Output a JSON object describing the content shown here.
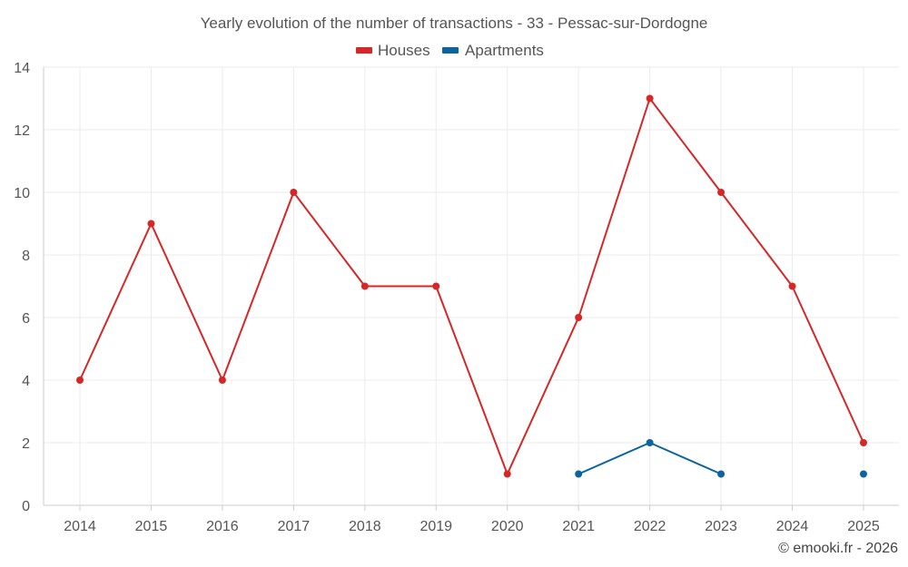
{
  "chart_data": {
    "type": "line",
    "title": "Yearly evolution of the number of transactions - 33 - Pessac-sur-Dordogne",
    "x": [
      "2014",
      "2015",
      "2016",
      "2017",
      "2018",
      "2019",
      "2020",
      "2021",
      "2022",
      "2023",
      "2024",
      "2025"
    ],
    "ylim": [
      0,
      14
    ],
    "yticks": [
      0,
      2,
      4,
      6,
      8,
      10,
      12,
      14
    ],
    "grid": true,
    "legend_position": "top-center",
    "series": [
      {
        "name": "Houses",
        "color": "#d62728",
        "values": [
          4,
          9,
          4,
          10,
          7,
          7,
          1,
          6,
          13,
          10,
          7,
          2
        ]
      },
      {
        "name": "Apartments",
        "color": "#0a64a0",
        "values": [
          null,
          null,
          null,
          null,
          null,
          null,
          null,
          1,
          2,
          1,
          null,
          1
        ]
      }
    ]
  },
  "credit": "© emooki.fr - 2026"
}
